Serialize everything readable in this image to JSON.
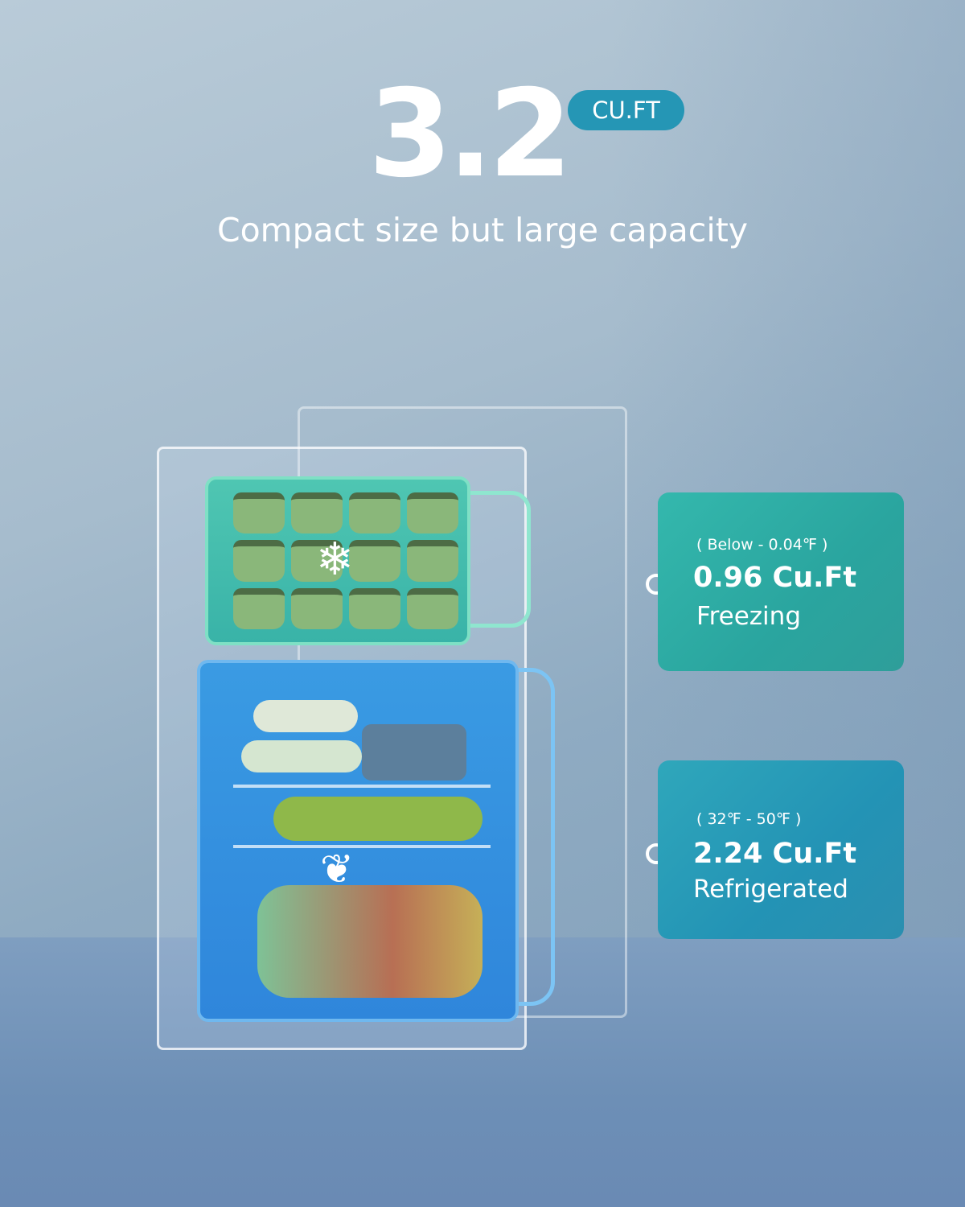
{
  "headline": {
    "value": "3.2",
    "unit_badge": "CU.FT",
    "subtitle": "Compact size but large capacity"
  },
  "compartments": [
    {
      "temperature": "( Below - 0.04℉ )",
      "capacity": "0.96 Cu.Ft",
      "label": "Freezing",
      "icon": "snowflake-icon"
    },
    {
      "temperature": "( 32℉ - 50℉ )",
      "capacity": "2.24 Cu.Ft",
      "label": "Refrigerated",
      "icon": "leaf-icon"
    }
  ],
  "colors": {
    "badge": "#2596b5",
    "freezer_card": "#2fae a6",
    "fridge_card": "#2596b5"
  }
}
